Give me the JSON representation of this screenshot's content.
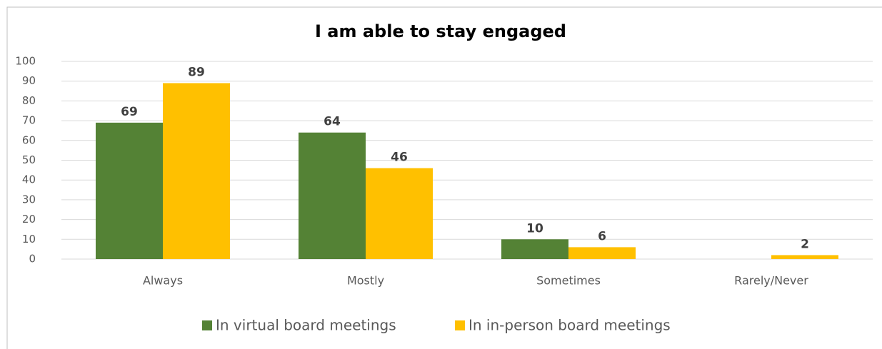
{
  "chart_data": {
    "type": "bar",
    "title": "I am able to stay engaged",
    "categories": [
      "Always",
      "Mostly",
      "Sometimes",
      "Rarely/Never"
    ],
    "series": [
      {
        "name": "In virtual board meetings",
        "color": "#548235",
        "values": [
          69,
          64,
          10,
          null
        ]
      },
      {
        "name": "In in-person board meetings",
        "color": "#ffc000",
        "values": [
          89,
          46,
          6,
          2
        ]
      }
    ],
    "ylim": [
      0,
      100
    ],
    "yticks": [
      0,
      10,
      20,
      30,
      40,
      50,
      60,
      70,
      80,
      90,
      100
    ],
    "grid": true,
    "legend": "bottom"
  }
}
